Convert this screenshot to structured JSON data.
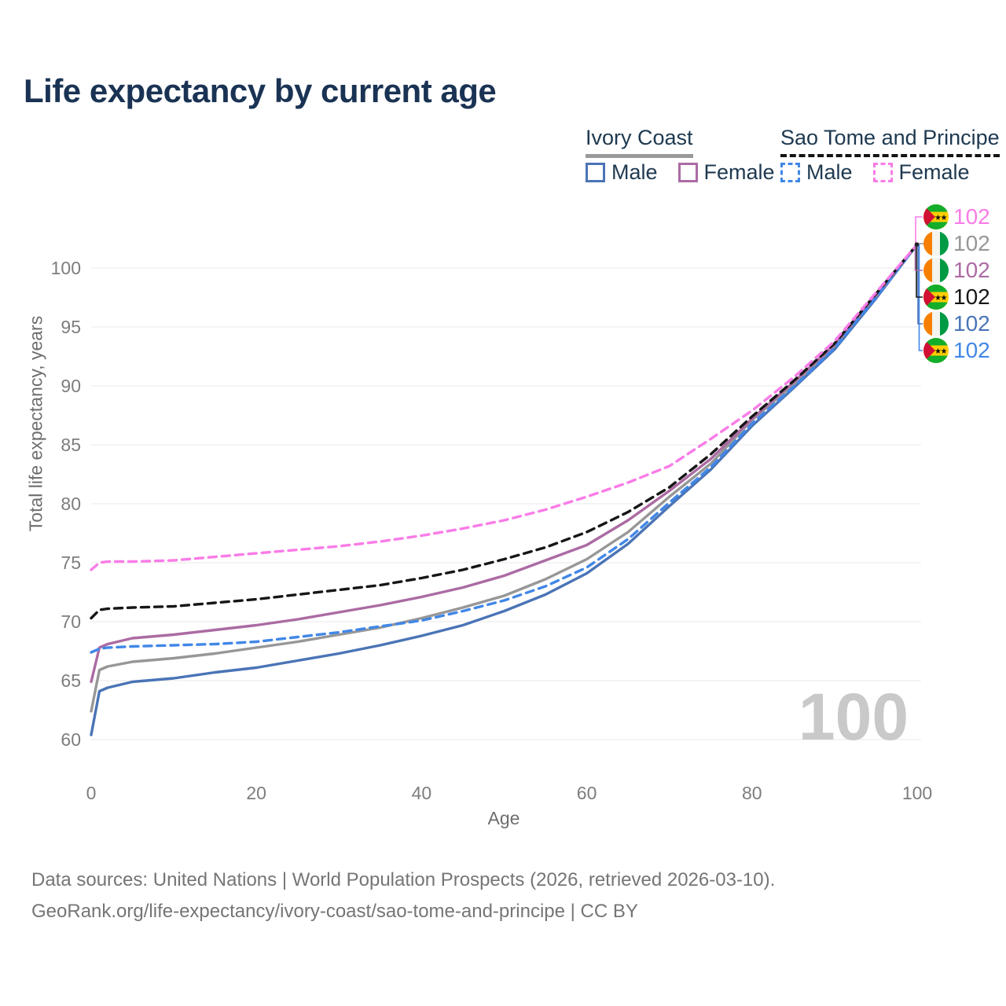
{
  "title": "Life expectancy by current age",
  "colors": {
    "title_text": "#1a3354",
    "legend_text": "#1e3950",
    "axis_tick_text": "#7d7d7d",
    "axis_title_text": "#6e6e6e",
    "gridline": "#e9e9e9",
    "footer_text": "#757575",
    "watermark_text": "#c9c9c9",
    "ivory_coast_male": "#4a74b6",
    "ivory_coast_female": "#ab6ba3",
    "ivory_coast_both": "#979797",
    "sao_tome_male": "#4187e7",
    "sao_tome_both": "#161616",
    "sao_tome_female": "#f97ce7"
  },
  "legend": {
    "groups": [
      {
        "name": "Ivory Coast",
        "line_style": "solid",
        "underline_color": "#999999",
        "items": [
          {
            "label": "Male",
            "color": "#4a74b6",
            "dashed": false
          },
          {
            "label": "Female",
            "color": "#ab6ba3",
            "dashed": false
          }
        ]
      },
      {
        "name": "Sao Tome and Principe",
        "line_style": "dashed",
        "underline_color": "#141414",
        "items": [
          {
            "label": "Male",
            "color": "#4187e7",
            "dashed": true
          },
          {
            "label": "Female",
            "color": "#f97ce7",
            "dashed": true
          }
        ]
      }
    ]
  },
  "chart_data": {
    "type": "line",
    "title": "Life expectancy by current age",
    "xlabel": "Age",
    "ylabel": "Total life expectancy, years",
    "xlim": [
      0,
      100
    ],
    "ylim": [
      58,
      103
    ],
    "xticks": [
      0,
      20,
      40,
      60,
      80,
      100
    ],
    "yticks": [
      60,
      65,
      70,
      75,
      80,
      85,
      90,
      95,
      100
    ],
    "grid": "horizontal-only",
    "legend_position": "top-right",
    "x": [
      0,
      1,
      2,
      5,
      10,
      15,
      20,
      25,
      30,
      35,
      40,
      45,
      50,
      55,
      60,
      65,
      70,
      75,
      80,
      85,
      90,
      95,
      100
    ],
    "series": [
      {
        "name": "Ivory Coast Male",
        "country": "Ivory Coast",
        "sex": "Male",
        "color": "#4a74b6",
        "dash": false,
        "flag": "ivory-coast",
        "end_label": "102",
        "values": [
          60.4,
          64.1,
          64.4,
          64.9,
          65.2,
          65.7,
          66.1,
          66.7,
          67.3,
          68.0,
          68.8,
          69.7,
          70.9,
          72.3,
          74.1,
          76.6,
          79.8,
          82.9,
          86.6,
          89.8,
          93.1,
          97.4,
          102
        ]
      },
      {
        "name": "Ivory Coast Both sexes",
        "country": "Ivory Coast",
        "sex": "Both",
        "color": "#979797",
        "dash": false,
        "flag": "ivory-coast",
        "end_label": "102",
        "values": [
          62.4,
          65.9,
          66.2,
          66.6,
          66.9,
          67.3,
          67.8,
          68.3,
          68.9,
          69.5,
          70.3,
          71.2,
          72.2,
          73.6,
          75.3,
          77.6,
          80.6,
          83.4,
          87.1,
          90.1,
          93.4,
          97.6,
          102
        ]
      },
      {
        "name": "Ivory Coast Female",
        "country": "Ivory Coast",
        "sex": "Female",
        "color": "#ab6ba3",
        "dash": false,
        "flag": "ivory-coast",
        "end_label": "102",
        "values": [
          64.9,
          67.8,
          68.1,
          68.6,
          68.9,
          69.3,
          69.7,
          70.2,
          70.8,
          71.4,
          72.1,
          72.9,
          73.9,
          75.2,
          76.5,
          78.6,
          81.1,
          83.8,
          87.2,
          90.3,
          93.5,
          97.7,
          102
        ]
      },
      {
        "name": "Sao Tome and Principe Male",
        "country": "Sao Tome and Principe",
        "sex": "Male",
        "color": "#4187e7",
        "dash": true,
        "flag": "sao-tome-and-principe",
        "end_label": "102",
        "values": [
          67.4,
          67.7,
          67.8,
          67.9,
          68.0,
          68.1,
          68.3,
          68.7,
          69.1,
          69.6,
          70.1,
          70.9,
          71.8,
          73.0,
          74.6,
          77.0,
          80.1,
          83.1,
          86.8,
          89.9,
          93.2,
          97.5,
          102
        ]
      },
      {
        "name": "Sao Tome and Principe Both sexes",
        "country": "Sao Tome and Principe",
        "sex": "Both",
        "color": "#161616",
        "dash": true,
        "flag": "sao-tome-and-principe",
        "end_label": "102",
        "values": [
          70.3,
          71.0,
          71.1,
          71.2,
          71.3,
          71.6,
          71.9,
          72.3,
          72.7,
          73.1,
          73.7,
          74.4,
          75.3,
          76.3,
          77.6,
          79.3,
          81.4,
          84.2,
          87.4,
          90.4,
          93.6,
          97.8,
          102
        ]
      },
      {
        "name": "Sao Tome and Principe Female",
        "country": "Sao Tome and Principe",
        "sex": "Female",
        "color": "#f97ce7",
        "dash": true,
        "flag": "sao-tome-and-principe",
        "end_label": "102",
        "values": [
          74.4,
          75.0,
          75.1,
          75.1,
          75.2,
          75.5,
          75.8,
          76.1,
          76.4,
          76.8,
          77.3,
          77.9,
          78.6,
          79.5,
          80.6,
          81.8,
          83.2,
          85.5,
          87.9,
          90.7,
          93.8,
          97.9,
          102
        ]
      }
    ]
  },
  "right_labels": [
    {
      "flag": "sao-tome-and-principe",
      "value": "102",
      "color": "#f97ce7"
    },
    {
      "flag": "ivory-coast",
      "value": "102",
      "color": "#979797"
    },
    {
      "flag": "ivory-coast",
      "value": "102",
      "color": "#ab6ba3"
    },
    {
      "flag": "sao-tome-and-principe",
      "value": "102",
      "color": "#161616"
    },
    {
      "flag": "ivory-coast",
      "value": "102",
      "color": "#4a74b6"
    },
    {
      "flag": "sao-tome-and-principe",
      "value": "102",
      "color": "#4187e7"
    }
  ],
  "hover_x_value": "100",
  "footer": {
    "line1": "Data sources: United Nations | World Population Prospects (2026, retrieved 2026-03-10).",
    "line2": "GeoRank.org/life-expectancy/ivory-coast/sao-tome-and-principe | CC BY"
  },
  "flag_colors": {
    "ivory_coast": {
      "orange": "#f77f00",
      "white": "#f4f4ef",
      "green": "#009a44"
    },
    "sao_tome_and_principe": {
      "green": "#12ad2b",
      "yellow": "#ffce00",
      "red": "#d21034",
      "star": "#111111"
    }
  }
}
